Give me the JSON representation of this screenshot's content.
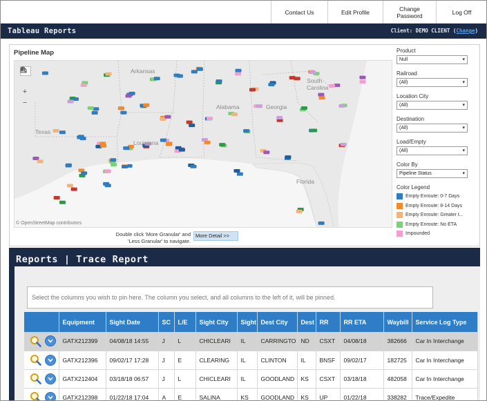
{
  "topnav": {
    "contact": "Contact Us",
    "edit_profile": "Edit Profile",
    "change_password_line1": "Change",
    "change_password_line2": "Password",
    "logoff": "Log Off"
  },
  "banner": {
    "title": "Tableau Reports",
    "client_label": "Client: DEMO CLIENT (",
    "change_link": "Change",
    "client_close": ")"
  },
  "map": {
    "title": "Pipeline Map",
    "attribution": "© OpenStreetMap contributors",
    "labels": {
      "arkansas": "Arkansas",
      "texas": "Texas",
      "louisiana": "Louisiana",
      "alabama": "Alabama",
      "georgia": "Georgia",
      "south_carolina_1": "South",
      "south_carolina_2": "Carolina",
      "florida": "Florida"
    },
    "nav_hint": "Double click 'More Granular' and 'Less Granular' to navigate.",
    "more_detail": "More Detail >>"
  },
  "filters": {
    "product_label": "Product",
    "product_value": "Null",
    "railroad_label": "Railroad",
    "railroad_value": "(All)",
    "location_city_label": "Location City",
    "location_city_value": "(All)",
    "destination_label": "Destination",
    "destination_value": "(All)",
    "load_empty_label": "Load/Empty",
    "load_empty_value": "(All)",
    "color_by_label": "Color By",
    "color_by_value": "Pipeline Status"
  },
  "legend": {
    "title": "Color Legend",
    "items": [
      {
        "label": "Empty Enroute: 0-7 Days",
        "color": "#2f7dbf"
      },
      {
        "label": "Empty Enroute: 8-14 Days",
        "color": "#f08a2c"
      },
      {
        "label": "Empty Enroute: Greater t...",
        "color": "#f5b37a"
      },
      {
        "label": "Empty Enroute: No ETA",
        "color": "#7fcf7a"
      },
      {
        "label": "Impounded",
        "color": "#ef9fd0"
      }
    ]
  },
  "report": {
    "title": "Reports | Trace Report",
    "pin_hint": "Select the columns you wish to pin here. The column you select, and all columns to the left of it, will be pinned."
  },
  "table": {
    "headers": [
      "",
      "Equipment",
      "Sight Date",
      "SC",
      "L/E",
      "Sight City",
      "Sight",
      "Dest City",
      "Dest",
      "RR",
      "RR ETA",
      "Waybill",
      "Service Log Type"
    ],
    "rows": [
      [
        "GATX212399",
        "04/08/18 14:55",
        "J",
        "L",
        "CHICLEARI",
        "IL",
        "CARRINGTO",
        "ND",
        "CSXT",
        "04/08/18",
        "382666",
        "Car In Interchange"
      ],
      [
        "GATX212396",
        "09/02/17 17:28",
        "J",
        "E",
        "CLEARING",
        "IL",
        "CLINTON",
        "IL",
        "BNSF",
        "09/02/17",
        "182725",
        "Car In Interchange"
      ],
      [
        "GATX212404",
        "03/18/18 06:57",
        "J",
        "L",
        "CHICLEARI",
        "IL",
        "GOODLAND",
        "KS",
        "CSXT",
        "03/18/18",
        "482058",
        "Car In Interchange"
      ],
      [
        "GATX212398",
        "01/22/18 17:04",
        "A",
        "E",
        "SALINA",
        "KS",
        "GOODLAND",
        "KS",
        "UP",
        "01/22/18",
        "338282",
        "Trace/Expedite"
      ]
    ]
  }
}
